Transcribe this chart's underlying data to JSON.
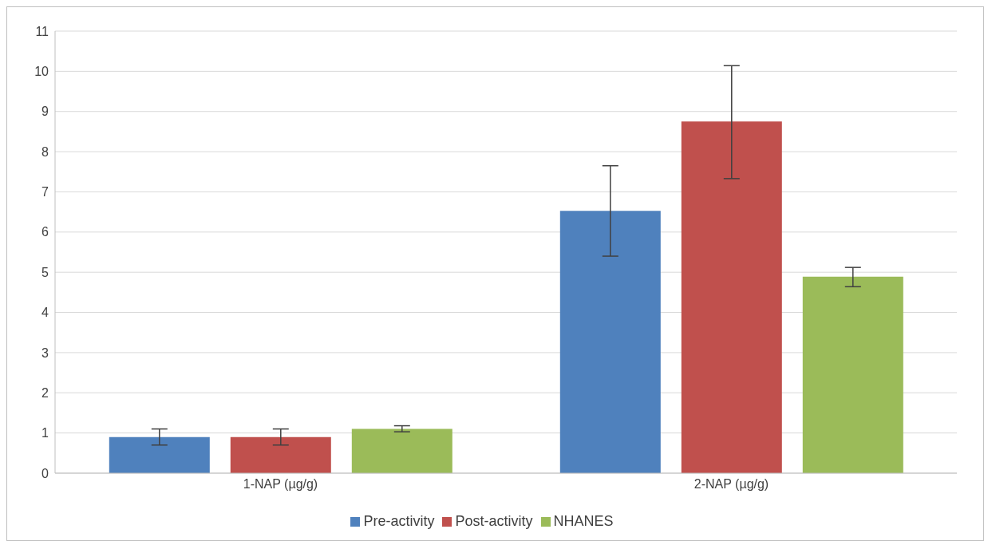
{
  "chart_data": {
    "type": "bar",
    "categories": [
      "1-NAP (µg/g)",
      "2-NAP (µg/g)"
    ],
    "series": [
      {
        "name": "Pre-activity",
        "color": "#4f81bd",
        "values": [
          0.9,
          6.53
        ],
        "errors": [
          [
            0.7,
            1.1
          ],
          [
            5.4,
            7.65
          ]
        ]
      },
      {
        "name": "Post-activity",
        "color": "#c0504d",
        "values": [
          0.9,
          8.75
        ],
        "errors": [
          [
            0.7,
            1.1
          ],
          [
            7.33,
            10.14
          ]
        ]
      },
      {
        "name": "NHANES",
        "color": "#9bbb59",
        "values": [
          1.1,
          4.89
        ],
        "errors": [
          [
            1.03,
            1.18
          ],
          [
            4.64,
            5.12
          ]
        ]
      }
    ],
    "ylim": [
      0,
      11
    ],
    "yticks": [
      0,
      1,
      2,
      3,
      4,
      5,
      6,
      7,
      8,
      9,
      10,
      11
    ],
    "grid": "y",
    "legend": "bottom"
  }
}
